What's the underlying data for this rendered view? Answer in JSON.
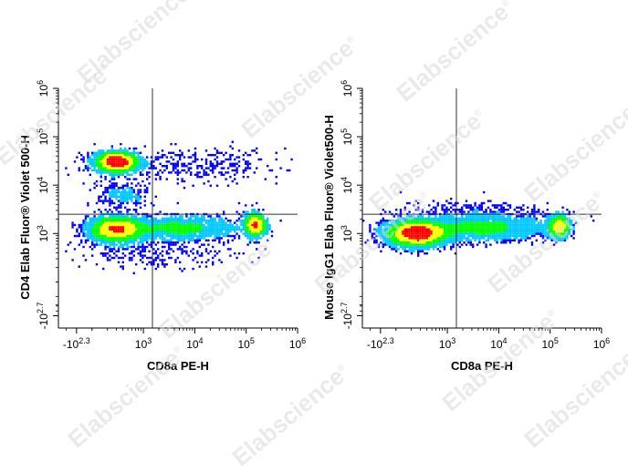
{
  "watermark": "Elabscience",
  "watermark_symbol": "®",
  "colors": {
    "density_low": "#0000ff",
    "density_mid": "#00c8ff",
    "density_midhigh": "#00ff00",
    "density_high": "#ffff00",
    "density_peak": "#ff0000",
    "axis": "#000000",
    "gate": "#333333"
  },
  "chart_data": [
    {
      "type": "scatter",
      "xlabel": "CD8a PE-H",
      "ylabel": "CD4 Elab Fluor® Violet 500-H",
      "x_ticks": [
        {
          "value": -200,
          "base": "-10",
          "exp": "2.3"
        },
        {
          "value": 1000,
          "base": "10",
          "exp": "3"
        },
        {
          "value": 10000,
          "base": "10",
          "exp": "4"
        },
        {
          "value": 100000,
          "base": "10",
          "exp": "5"
        },
        {
          "value": 1000000,
          "base": "10",
          "exp": "6"
        }
      ],
      "y_ticks": [
        {
          "value": -500,
          "base": "-10",
          "exp": "2.7"
        },
        {
          "value": 1000,
          "base": "10",
          "exp": "3"
        },
        {
          "value": 10000,
          "base": "10",
          "exp": "4"
        },
        {
          "value": 100000,
          "base": "10",
          "exp": "5"
        },
        {
          "value": 1000000,
          "base": "10",
          "exp": "6"
        }
      ],
      "quadrant_gate": {
        "x": 1500,
        "y": 2500
      },
      "populations": [
        {
          "x": 300,
          "y": 30000,
          "spread_x": 0.22,
          "spread_y": 0.1,
          "weight": 0.28
        },
        {
          "x": 300,
          "y": 1200,
          "spread_x": 0.28,
          "spread_y": 0.13,
          "weight": 0.3
        },
        {
          "x": 5000,
          "y": 1300,
          "spread_x": 0.6,
          "spread_y": 0.12,
          "weight": 0.2
        },
        {
          "x": 150000,
          "y": 1500,
          "spread_x": 0.1,
          "spread_y": 0.12,
          "weight": 0.12
        },
        {
          "x": 10000,
          "y": 25000,
          "spread_x": 0.9,
          "spread_y": 0.18,
          "weight": 0.04
        },
        {
          "x": 400,
          "y": 6000,
          "spread_x": 0.25,
          "spread_y": 0.15,
          "weight": 0.03
        },
        {
          "x": 2000,
          "y": 400,
          "spread_x": 0.8,
          "spread_y": 0.15,
          "weight": 0.03
        }
      ]
    },
    {
      "type": "scatter",
      "xlabel": "CD8a PE-H",
      "ylabel": "Mouse IgG1 Elab Fluor® Violet500-H",
      "x_ticks": [
        {
          "value": -200,
          "base": "-10",
          "exp": "2.3"
        },
        {
          "value": 1000,
          "base": "10",
          "exp": "3"
        },
        {
          "value": 10000,
          "base": "10",
          "exp": "4"
        },
        {
          "value": 100000,
          "base": "10",
          "exp": "5"
        },
        {
          "value": 1000000,
          "base": "10",
          "exp": "6"
        }
      ],
      "y_ticks": [
        {
          "value": -500,
          "base": "-10",
          "exp": "2.7"
        },
        {
          "value": 1000,
          "base": "10",
          "exp": "3"
        },
        {
          "value": 10000,
          "base": "10",
          "exp": "4"
        },
        {
          "value": 100000,
          "base": "10",
          "exp": "5"
        },
        {
          "value": 1000000,
          "base": "10",
          "exp": "6"
        }
      ],
      "quadrant_gate": {
        "x": 1500,
        "y": 2500
      },
      "populations": [
        {
          "x": 250,
          "y": 1000,
          "spread_x": 0.3,
          "spread_y": 0.13,
          "weight": 0.55
        },
        {
          "x": 5000,
          "y": 1300,
          "spread_x": 0.65,
          "spread_y": 0.12,
          "weight": 0.3
        },
        {
          "x": 150000,
          "y": 1400,
          "spread_x": 0.1,
          "spread_y": 0.12,
          "weight": 0.12
        },
        {
          "x": 3000,
          "y": 3000,
          "spread_x": 0.7,
          "spread_y": 0.1,
          "weight": 0.03
        }
      ]
    }
  ]
}
